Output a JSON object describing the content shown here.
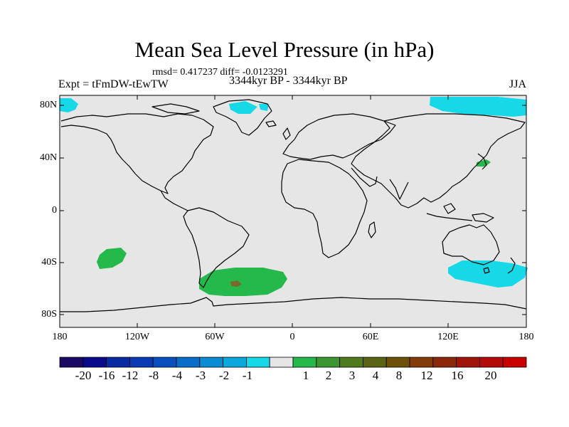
{
  "title": "Mean Sea Level Pressure (in hPa)",
  "stats": "rmsd= 0.417237 diff= -0.0123291",
  "experiment": "Expt = tFmDW-tEwTW",
  "period": "3344kyr BP - 3344kyr BP",
  "season": "JJA",
  "colors": {
    "background_field": "#e6e6e6",
    "cyan_anomaly": "#17d8e6",
    "green_anomaly": "#25b84a",
    "brown_anomaly": "#7a6a2a",
    "coastline": "#000000"
  },
  "map": {
    "lat_labels": [
      "80N",
      "40N",
      "0",
      "40S",
      "80S"
    ],
    "lon_labels": [
      "180",
      "120W",
      "60W",
      "0",
      "60E",
      "120E",
      "180"
    ],
    "anomaly_regions": [
      {
        "name": "arctic-north-pacific",
        "sign": "negative",
        "level": "-2 to -1",
        "color": "cyan_anomaly"
      },
      {
        "name": "greenland-north",
        "sign": "negative",
        "level": "-2 to -1",
        "color": "cyan_anomaly"
      },
      {
        "name": "south-pacific",
        "sign": "positive",
        "level": "1 to 2",
        "color": "green_anomaly"
      },
      {
        "name": "south-atlantic",
        "sign": "positive",
        "level": "1 to 2",
        "color": "green_anomaly"
      },
      {
        "name": "south-atlantic-core",
        "sign": "positive",
        "level": "3 to 4",
        "color": "brown_anomaly"
      },
      {
        "name": "south-of-australia",
        "sign": "negative",
        "level": "-2 to -1",
        "color": "cyan_anomaly"
      },
      {
        "name": "japan",
        "sign": "positive",
        "level": "1 to 2",
        "color": "green_anomaly"
      }
    ]
  },
  "colorbar": {
    "colors": [
      "#1a0a63",
      "#0a0a8c",
      "#0a2aa0",
      "#0a3ab4",
      "#0a4fc0",
      "#0a6ec8",
      "#0a8cd2",
      "#0aa8dc",
      "#17d8e6",
      "#e6e6e6",
      "#25b84a",
      "#3c9632",
      "#4f7a1e",
      "#5a6414",
      "#6e500a",
      "#823c0a",
      "#8c280a",
      "#a0140a",
      "#b40a0a",
      "#c80000"
    ],
    "labels": [
      "-20",
      "-16",
      "-12",
      "-8",
      "-4",
      "-3",
      "-2",
      "-1",
      "1",
      "2",
      "3",
      "4",
      "8",
      "12",
      "16",
      "20"
    ]
  }
}
